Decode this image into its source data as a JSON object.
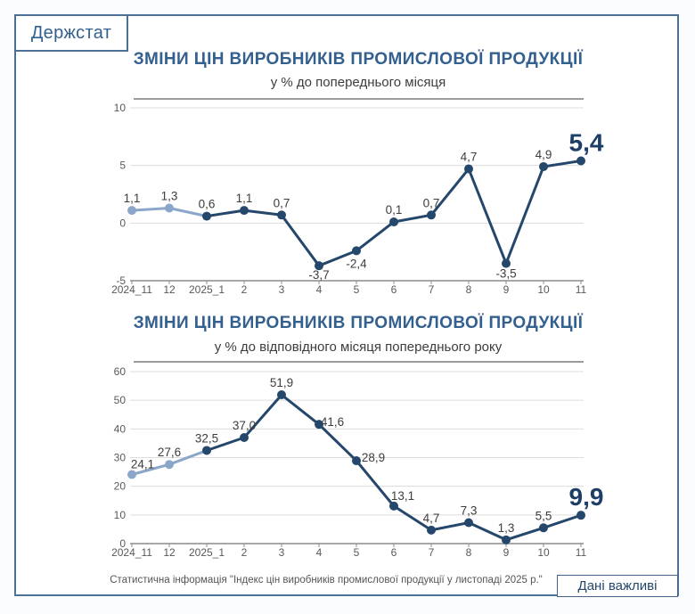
{
  "header": {
    "brand": "Держстат"
  },
  "colors": {
    "accent_dark": "#24476b",
    "accent_light": "#8aa6c8",
    "big_label": "#1d3f66",
    "grid": "#dcdcdc",
    "axis": "#8c8c8c",
    "tick_label": "#595959",
    "data_label": "#3d3d3d"
  },
  "chart_data": [
    {
      "type": "line",
      "title": "ЗМІНИ ЦІН ВИРОБНИКІВ ПРОМИСЛОВОЇ ПРОДУКЦІЇ",
      "subtitle": "у % до попереднього місяця",
      "categories": [
        "2024_11",
        "12",
        "2025_1",
        "2",
        "3",
        "4",
        "5",
        "6",
        "7",
        "8",
        "9",
        "10",
        "11"
      ],
      "values": [
        1.1,
        1.3,
        0.6,
        1.1,
        0.7,
        -3.7,
        -2.4,
        0.1,
        0.7,
        4.7,
        -3.5,
        4.9,
        5.4
      ],
      "labels": [
        "1,1",
        "1,3",
        "0,6",
        "1,1",
        "0,7",
        "-3,7",
        "-2,4",
        "0,1",
        "0,7",
        "4,7",
        "-3,5",
        "4,9",
        "5,4"
      ],
      "ylim": [
        -5,
        10
      ],
      "yticks": [
        10,
        5,
        0,
        -5
      ],
      "grid": true,
      "legend": "none",
      "light_points": 2,
      "big_last": true,
      "label_offsets": {
        "5": [
          0,
          -4
        ],
        "10": [
          0,
          -3
        ]
      }
    },
    {
      "type": "line",
      "title": "ЗМІНИ ЦІН ВИРОБНИКІВ ПРОМИСЛОВОЇ ПРОДУКЦІЇ",
      "subtitle": "у % до відповідного місяця попереднього року",
      "categories": [
        "2024_11",
        "12",
        "2025_1",
        "2",
        "3",
        "4",
        "5",
        "6",
        "7",
        "8",
        "9",
        "10",
        "11"
      ],
      "values": [
        24.1,
        27.6,
        32.5,
        37.0,
        51.9,
        41.6,
        28.9,
        13.1,
        4.7,
        7.3,
        1.3,
        5.5,
        9.9
      ],
      "labels": [
        "24,1",
        "27,6",
        "32,5",
        "37,0",
        "51,9",
        "41,6",
        "28,9",
        "13,1",
        "4,7",
        "7,3",
        "1,3",
        "5,5",
        "9,9"
      ],
      "ylim": [
        0,
        60
      ],
      "yticks": [
        60,
        50,
        40,
        30,
        20,
        10,
        0
      ],
      "grid": true,
      "legend": "none",
      "light_points": 2,
      "big_last": true,
      "label_offsets": {
        "0": [
          12,
          2
        ],
        "5": [
          15,
          11
        ],
        "6": [
          19,
          10
        ],
        "7": [
          10,
          2
        ]
      }
    }
  ],
  "footer": {
    "source": "Статистична інформація \"Індекс цін виробників промислової продукції у листопаді 2025 р.\"",
    "badge": "Дані важливі"
  }
}
